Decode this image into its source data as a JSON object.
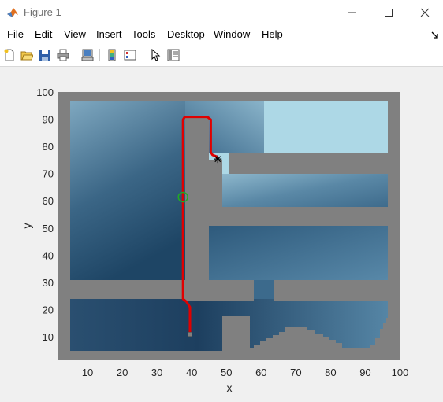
{
  "window": {
    "title": "Figure 1"
  },
  "menu": {
    "items": [
      "File",
      "Edit",
      "View",
      "Insert",
      "Tools",
      "Desktop",
      "Window",
      "Help"
    ]
  },
  "toolbar": {
    "buttons": [
      "new-figure-icon",
      "open-file-icon",
      "save-icon",
      "print-icon",
      "link-plot-icon",
      "colorbar-icon",
      "legend-icon",
      "pointer-icon",
      "property-inspector-icon"
    ]
  },
  "chart_data": {
    "type": "map",
    "xlabel": "x",
    "ylabel": "y",
    "xlim": [
      0,
      100
    ],
    "ylim": [
      0,
      100
    ],
    "xticks": [
      10,
      20,
      30,
      40,
      50,
      60,
      70,
      80,
      90,
      100
    ],
    "yticks": [
      10,
      20,
      30,
      40,
      50,
      60,
      70,
      80,
      90,
      100
    ],
    "path": [
      [
        39.5,
        11
      ],
      [
        39.5,
        21
      ],
      [
        38.5,
        23
      ],
      [
        37.5,
        24
      ],
      [
        37.5,
        90
      ],
      [
        38,
        91
      ],
      [
        44.5,
        91
      ],
      [
        45.5,
        90
      ],
      [
        45.5,
        78
      ],
      [
        46,
        77
      ],
      [
        47,
        76.5
      ],
      [
        47.5,
        75.5
      ]
    ],
    "start_marker": {
      "x": 37.5,
      "y": 61.5,
      "shape": "circle",
      "color": "#22aa22"
    },
    "goal_marker": {
      "x": 47.5,
      "y": 75.5,
      "shape": "asterisk",
      "color": "#000000"
    },
    "colors": {
      "path": "#e00000",
      "obstacle": "#808080",
      "free_light": "#add8e6",
      "free_dark": "#173454"
    }
  }
}
